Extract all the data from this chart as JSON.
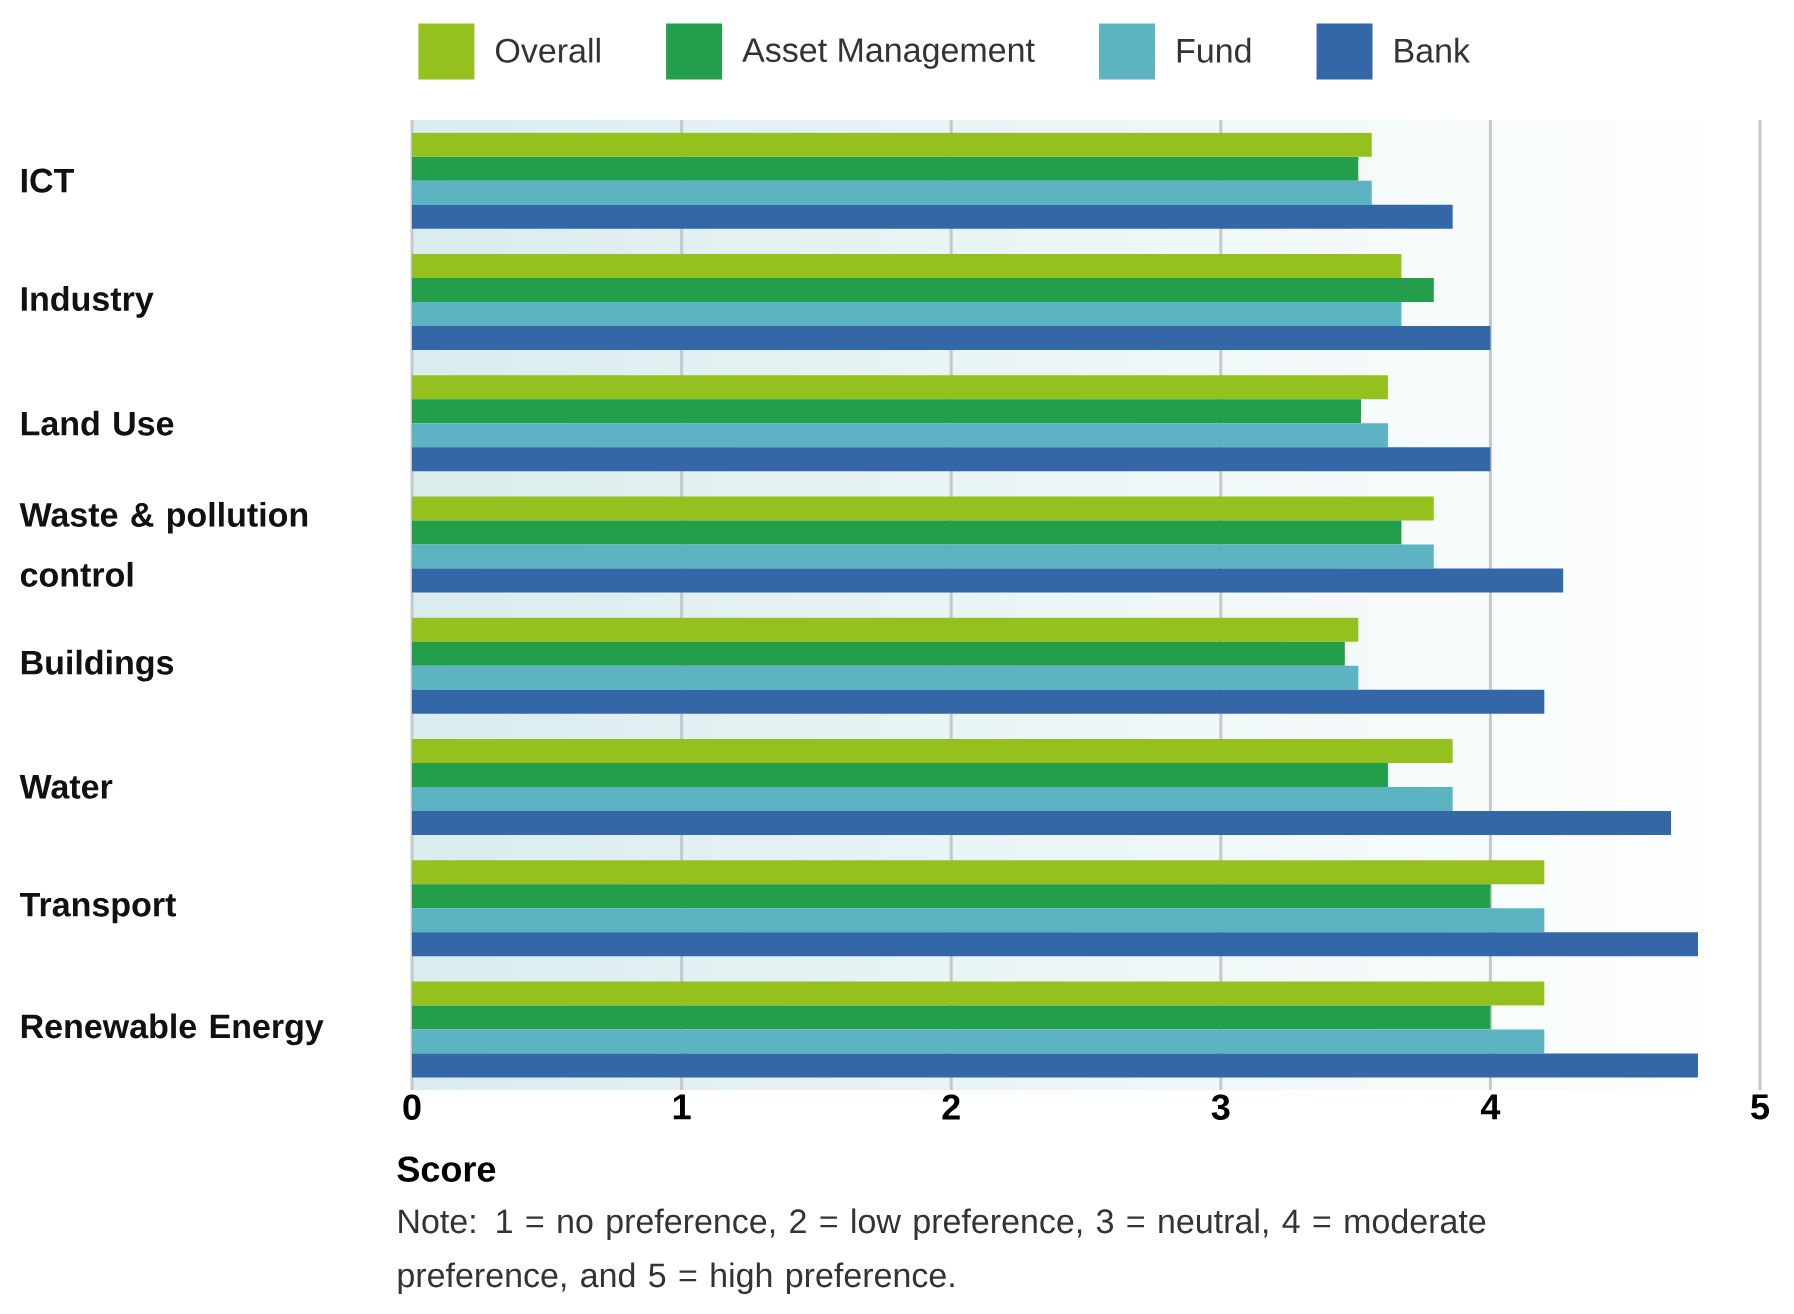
{
  "chart_data": {
    "type": "bar",
    "orientation": "horizontal",
    "categories": [
      "ICT",
      "Industry",
      "Land Use",
      "Waste & pollution control",
      "Buildings",
      "Water",
      "Transport",
      "Renewable Energy"
    ],
    "series": [
      {
        "name": "Overall",
        "color": "#95c11f",
        "values": [
          3.56,
          3.67,
          3.62,
          3.79,
          3.51,
          3.86,
          4.2,
          4.2
        ]
      },
      {
        "name": "Asset Management",
        "color": "#239e4a",
        "values": [
          3.51,
          3.79,
          3.52,
          3.67,
          3.46,
          3.62,
          4.0,
          4.0
        ]
      },
      {
        "name": "Fund",
        "color": "#5cb4c2",
        "values": [
          3.56,
          3.67,
          3.62,
          3.79,
          3.51,
          3.86,
          4.2,
          4.2
        ]
      },
      {
        "name": "Bank",
        "color": "#3367a7",
        "values": [
          3.86,
          4.0,
          4.0,
          4.27,
          4.2,
          4.67,
          4.77,
          4.77
        ]
      }
    ],
    "xlabel": "Score",
    "xlim": [
      0,
      5
    ],
    "xticks": [
      0,
      1,
      2,
      3,
      4,
      5
    ],
    "grid": "x",
    "legend": "top",
    "annotations": [
      "Note: 1 = no preference, 2 = low preference, 3 = neutral, 4 = moderate preference, and 5 = high preference."
    ]
  }
}
